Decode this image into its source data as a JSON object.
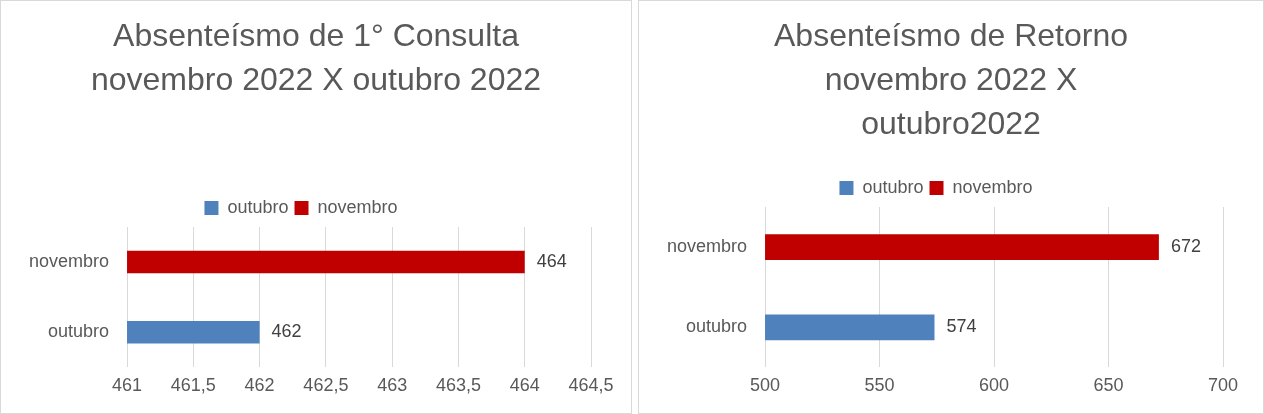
{
  "chart_data": [
    {
      "type": "bar",
      "orientation": "horizontal",
      "title": "Absenteísmo de 1° Consulta novembro 2022 X outubro 2022",
      "categories": [
        "novembro",
        "outubro"
      ],
      "series": [
        {
          "name": "outubro",
          "color": "#4f81bd",
          "values": [
            null,
            462
          ]
        },
        {
          "name": "novembro",
          "color": "#c00000",
          "values": [
            464,
            null
          ]
        }
      ],
      "xlim": [
        461,
        464.5
      ],
      "xticks": [
        461,
        {
          "value": 461.5,
          "label": "461,5"
        },
        462,
        {
          "value": 462.5,
          "label": "462,5"
        },
        463,
        {
          "value": 463.5,
          "label": "463,5"
        },
        464,
        {
          "value": 464.5,
          "label": "464,5"
        }
      ],
      "grid": "x",
      "legend": "top",
      "data_labels": true
    },
    {
      "type": "bar",
      "orientation": "horizontal",
      "title": "Absenteísmo de Retorno novembro 2022 X outubro2022",
      "categories": [
        "novembro",
        "outubro"
      ],
      "series": [
        {
          "name": "outubro",
          "color": "#4f81bd",
          "values": [
            null,
            574
          ]
        },
        {
          "name": "novembro",
          "color": "#c00000",
          "values": [
            672,
            null
          ]
        }
      ],
      "xlim": [
        500,
        700
      ],
      "xticks": [
        500,
        550,
        600,
        650,
        700
      ],
      "grid": "x",
      "legend": "top",
      "data_labels": true
    }
  ]
}
